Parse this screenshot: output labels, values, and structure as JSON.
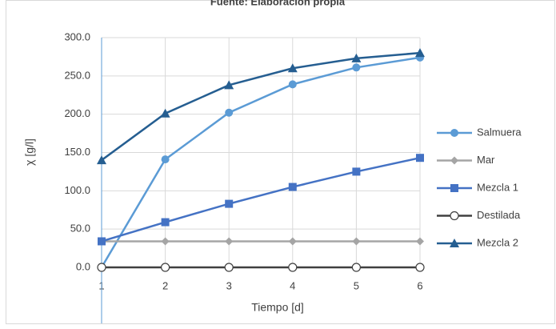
{
  "chart_data": {
    "type": "line",
    "title": "Fuente: Elaboración propia",
    "x_label": "Tiempo [d]",
    "y_label": "χ [g/l]",
    "x": [
      1,
      2,
      3,
      4,
      5,
      6
    ],
    "xlim": [
      1,
      6
    ],
    "xticks": [
      1,
      2,
      3,
      4,
      5,
      6
    ],
    "ylim": [
      0,
      300
    ],
    "yticks": [
      {
        "value": 0,
        "label": "0.0"
      },
      {
        "value": 50,
        "label": "50.0"
      },
      {
        "value": 100,
        "label": "100.0"
      },
      {
        "value": 150,
        "label": "150.0"
      },
      {
        "value": 200,
        "label": "200.0"
      },
      {
        "value": 250,
        "label": "250.0"
      },
      {
        "value": 300,
        "label": "300.0"
      }
    ],
    "grid": true,
    "legend": "right",
    "series": [
      {
        "name": "Salmuera",
        "color": "#5b9bd5",
        "marker": "circle",
        "values": [
          0,
          141,
          202,
          239,
          261,
          274
        ]
      },
      {
        "name": "Mar",
        "color": "#a5a5a5",
        "marker": "diamond",
        "values": [
          34,
          34,
          34,
          34,
          34,
          34
        ]
      },
      {
        "name": "Mezcla 1",
        "color": "#4472c4",
        "marker": "square",
        "values": [
          34,
          59,
          83,
          105,
          125,
          143
        ]
      },
      {
        "name": "Destilada",
        "color": "#404040",
        "marker": "open-circle",
        "values": [
          0,
          0,
          0,
          0,
          0,
          0
        ]
      },
      {
        "name": "Mezcla 2",
        "color": "#255e91",
        "marker": "triangle",
        "values": [
          140,
          201,
          238,
          260,
          273,
          280
        ]
      }
    ]
  }
}
